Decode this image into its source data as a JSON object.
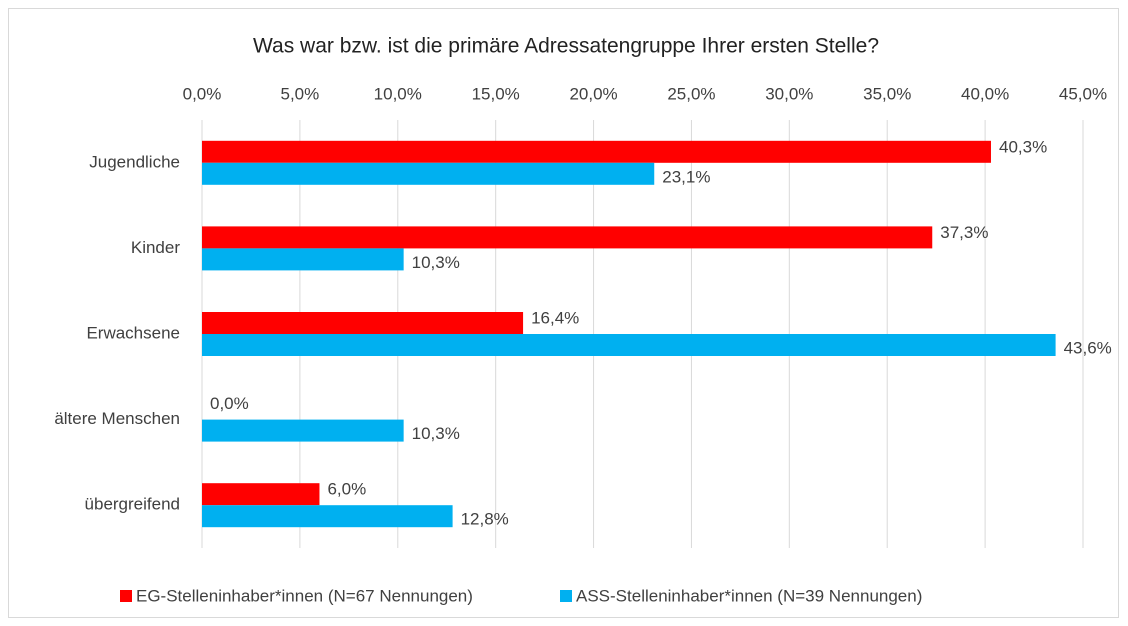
{
  "chart_data": {
    "type": "bar",
    "orientation": "horizontal",
    "title": "Was war bzw. ist die primäre Adressatengruppe Ihrer ersten Stelle?",
    "categories": [
      "Jugendliche",
      "Kinder",
      "Erwachsene",
      "ältere Menschen",
      "übergreifend"
    ],
    "series": [
      {
        "name": "EG-Stelleninhaber*innen (N=67 Nennungen)",
        "color": "#ff0000",
        "values": [
          40.3,
          37.3,
          16.4,
          0.0,
          6.0
        ],
        "value_labels": [
          "40,3%",
          "37,3%",
          "16,4%",
          "0,0%",
          "6,0%"
        ]
      },
      {
        "name": "ASS-Stelleninhaber*innen (N=39 Nennungen)",
        "color": "#00b0f0",
        "values": [
          23.1,
          10.3,
          43.6,
          10.3,
          12.8
        ],
        "value_labels": [
          "23,1%",
          "10,3%",
          "43,6%",
          "10,3%",
          "12,8%"
        ]
      }
    ],
    "xlim": [
      0,
      45
    ],
    "xticks": [
      {
        "value": 0,
        "label": "0,0%"
      },
      {
        "value": 5,
        "label": "5,0%"
      },
      {
        "value": 10,
        "label": "10,0%"
      },
      {
        "value": 15,
        "label": "15,0%"
      },
      {
        "value": 20,
        "label": "20,0%"
      },
      {
        "value": 25,
        "label": "25,0%"
      },
      {
        "value": 30,
        "label": "30,0%"
      },
      {
        "value": 35,
        "label": "35,0%"
      },
      {
        "value": 40,
        "label": "40,0%"
      },
      {
        "value": 45,
        "label": "45,0%"
      }
    ],
    "grid": true,
    "legend": "bottom"
  }
}
